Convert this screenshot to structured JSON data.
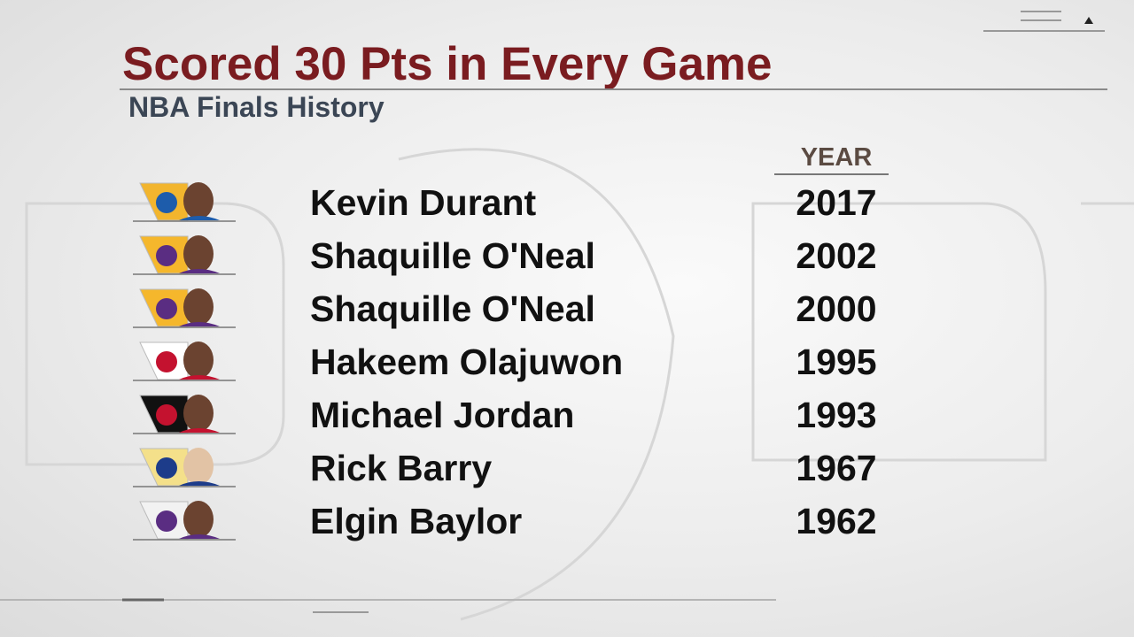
{
  "header": {
    "title": "Scored 30 Pts in Every Game",
    "subtitle": "NBA Finals History"
  },
  "table": {
    "columns": [
      "YEAR"
    ],
    "rows": [
      [
        "Kevin Durant",
        "2017"
      ],
      [
        "Shaquille O'Neal",
        "2002"
      ],
      [
        "Shaquille O'Neal",
        "2000"
      ],
      [
        "Hakeem Olajuwon",
        "1995"
      ],
      [
        "Michael Jordan",
        "1993"
      ],
      [
        "Rick Barry",
        "1967"
      ],
      [
        "Elgin Baylor",
        "1962"
      ]
    ]
  }
}
